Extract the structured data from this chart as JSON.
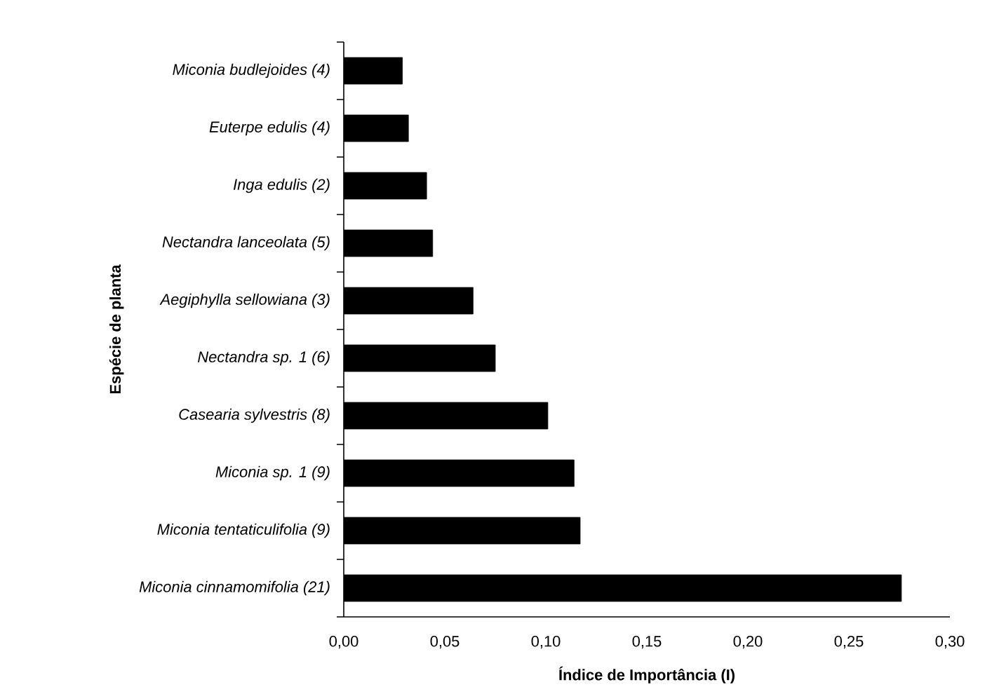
{
  "chart_data": {
    "type": "bar",
    "orientation": "horizontal",
    "xlabel": "Índice de Importância (I)",
    "ylabel": "Espécie de planta",
    "categories": [
      "Miconia budlejoides (4)",
      "Euterpe edulis (4)",
      "Inga edulis (2)",
      "Nectandra lanceolata (5)",
      "Aegiphylla sellowiana (3)",
      "Nectandra sp. 1 (6)",
      "Casearia sylvestris (8)",
      "Miconia sp. 1 (9)",
      "Miconia tentaticulifolia (9)",
      "Miconia cinnamomifolia (21)"
    ],
    "values": [
      0.029,
      0.032,
      0.041,
      0.044,
      0.064,
      0.075,
      0.101,
      0.114,
      0.117,
      0.276
    ],
    "color": "#000000",
    "xlim": [
      0,
      0.3
    ],
    "xticks": [
      {
        "value": 0,
        "label": "0,00"
      },
      {
        "value": 0.05,
        "label": "0,05"
      },
      {
        "value": 0.1,
        "label": "0,10"
      },
      {
        "value": 0.15,
        "label": "0,15"
      },
      {
        "value": 0.2,
        "label": "0,20"
      },
      {
        "value": 0.25,
        "label": "0,25"
      },
      {
        "value": 0.3,
        "label": "0,30"
      }
    ]
  }
}
